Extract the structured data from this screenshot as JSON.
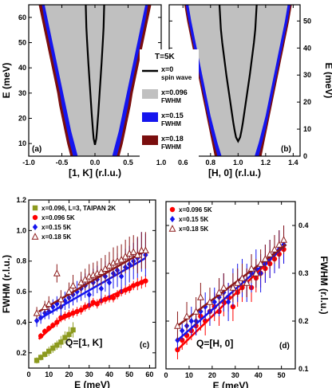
{
  "colors": {
    "gray": "#c0c0c0",
    "blue": "#1515ee",
    "darkred": "#7a0e0e",
    "black": "#000000",
    "red": "#ff0000",
    "olive": "#8c9a1e",
    "brown": "#8b1a1a"
  },
  "chart_data": [
    {
      "id": "a",
      "type": "area",
      "panel_label": "(a)",
      "xlabel": "[1, K] (r.l.u.)",
      "ylabel": "E (meV)",
      "xlim": [
        -1.0,
        1.0
      ],
      "ylim": [
        5,
        65
      ],
      "xticks": [
        -1.0,
        -0.5,
        0.0,
        0.5,
        1.0
      ],
      "xtick_labels": [
        "-1.0",
        "-0.5",
        "0.0",
        "0.5",
        "1.0"
      ],
      "yticks": [
        10,
        20,
        30,
        40,
        50,
        60
      ],
      "yaxis_side": "left",
      "center": 0.0,
      "energies": [
        5,
        10,
        15,
        20,
        25,
        30,
        35,
        40,
        45,
        50,
        55,
        60,
        65
      ],
      "bands": [
        {
          "name": "x=0.18 FWHM",
          "color": "darkred",
          "half_width": [
            0.37,
            0.42,
            0.46,
            0.5,
            0.54,
            0.57,
            0.61,
            0.65,
            0.69,
            0.73,
            0.77,
            0.81,
            0.85
          ]
        },
        {
          "name": "x=0.15 FWHM",
          "color": "blue",
          "half_width": [
            0.33,
            0.38,
            0.42,
            0.46,
            0.5,
            0.53,
            0.57,
            0.61,
            0.65,
            0.69,
            0.73,
            0.77,
            0.8
          ]
        },
        {
          "name": "x=0.096 FWHM",
          "color": "gray",
          "half_width": [
            0.26,
            0.31,
            0.36,
            0.4,
            0.44,
            0.48,
            0.52,
            0.56,
            0.6,
            0.64,
            0.68,
            0.72,
            0.76
          ]
        }
      ],
      "spin_wave": {
        "name": "x=0 spin wave",
        "gap": 9.5,
        "k": [
          0.0,
          0.02,
          0.03,
          0.04,
          0.05,
          0.06,
          0.07,
          0.08,
          0.09,
          0.1,
          0.11,
          0.12,
          0.13,
          0.14
        ],
        "E": [
          9.5,
          12,
          15,
          18.5,
          22,
          26,
          30,
          34,
          38,
          42,
          46.5,
          51,
          56,
          66
        ]
      }
    },
    {
      "id": "b",
      "type": "area",
      "panel_label": "(b)",
      "xlabel": "[H, 0] (r.l.u.)",
      "ylabel": "E (meV)",
      "xlim": [
        0.5,
        1.45
      ],
      "ylim": [
        0,
        56
      ],
      "xticks": [
        0.6,
        0.8,
        1.0,
        1.2,
        1.4
      ],
      "xtick_labels": [
        "0.6",
        "0.8",
        "1.0",
        "1.2",
        "1.4"
      ],
      "yticks": [
        0,
        10,
        20,
        30,
        40,
        50
      ],
      "yaxis_side": "right",
      "center": 1.0,
      "energies": [
        0,
        5,
        10,
        15,
        20,
        25,
        30,
        35,
        40,
        45,
        50,
        56
      ],
      "bands": [
        {
          "name": "x=0.18 FWHM",
          "color": "darkred",
          "half_width": [
            0.17,
            0.19,
            0.21,
            0.23,
            0.25,
            0.27,
            0.29,
            0.31,
            0.33,
            0.35,
            0.37,
            0.39
          ]
        },
        {
          "name": "x=0.15 FWHM",
          "color": "blue",
          "half_width": [
            0.15,
            0.175,
            0.2,
            0.22,
            0.24,
            0.26,
            0.28,
            0.3,
            0.32,
            0.34,
            0.36,
            0.38
          ]
        },
        {
          "name": "x=0.096 FWHM",
          "color": "gray",
          "half_width": [
            0.12,
            0.15,
            0.175,
            0.2,
            0.22,
            0.24,
            0.26,
            0.28,
            0.3,
            0.32,
            0.34,
            0.36
          ]
        }
      ],
      "spin_wave": {
        "name": "x=0 spin wave",
        "gap": 5.5,
        "k": [
          0.0,
          0.015,
          0.025,
          0.035,
          0.045,
          0.055,
          0.065,
          0.075,
          0.085,
          0.095,
          0.105,
          0.115,
          0.125,
          0.135
        ],
        "E": [
          5.5,
          7,
          9.5,
          12.5,
          16,
          19.5,
          23,
          26.5,
          30,
          34,
          38,
          42,
          47,
          56
        ]
      }
    },
    {
      "id": "c",
      "type": "scatter",
      "panel_label": "(c)",
      "q_label": "Q=[1, K]",
      "xlabel": "E (meV)",
      "ylabel": "FWHM (r.l.u.)",
      "xlim": [
        0,
        63
      ],
      "ylim": [
        0.1,
        1.2
      ],
      "xticks": [
        0,
        10,
        20,
        30,
        40,
        50,
        60
      ],
      "yticks": [
        0.2,
        0.4,
        0.6,
        0.8,
        1.0,
        1.2
      ],
      "ytick_labels": [
        "0.2",
        "0.4",
        "0.6",
        "0.8",
        "1.0",
        "1.2"
      ],
      "yaxis_side": "left",
      "series": [
        {
          "name": "x=0.096, L=3, TAIPAN  2K",
          "color": "olive",
          "marker": "square",
          "x": [
            4,
            6,
            8,
            10,
            12,
            14,
            16,
            18,
            20,
            22
          ],
          "y": [
            0.15,
            0.17,
            0.19,
            0.21,
            0.23,
            0.25,
            0.27,
            0.3,
            0.32,
            0.35
          ],
          "err": [
            0.02,
            0.02,
            0.02,
            0.03,
            0.03,
            0.03,
            0.04,
            0.04,
            0.05,
            0.05
          ],
          "fit": [
            [
              4,
              0.15
            ],
            [
              23,
              0.35
            ]
          ]
        },
        {
          "name": "x=0.096      5K",
          "color": "red",
          "marker": "circle",
          "x": [
            6,
            8,
            10,
            12,
            14,
            16,
            18,
            20,
            22,
            24,
            26,
            28,
            30,
            32,
            34,
            36,
            38,
            40,
            42,
            44,
            46,
            48,
            50,
            52,
            54,
            56,
            58
          ],
          "y": [
            0.31,
            0.34,
            0.36,
            0.38,
            0.4,
            0.43,
            0.44,
            0.45,
            0.46,
            0.47,
            0.48,
            0.5,
            0.51,
            0.53,
            0.52,
            0.54,
            0.55,
            0.56,
            0.56,
            0.58,
            0.6,
            0.61,
            0.62,
            0.64,
            0.65,
            0.66,
            0.67
          ],
          "err": [
            0.02,
            0.02,
            0.02,
            0.02,
            0.03,
            0.03,
            0.03,
            0.03,
            0.03,
            0.03,
            0.03,
            0.03,
            0.03,
            0.03,
            0.03,
            0.03,
            0.03,
            0.03,
            0.03,
            0.03,
            0.03,
            0.03,
            0.03,
            0.03,
            0.04,
            0.04,
            0.04
          ],
          "fit": [
            [
              5,
              0.29
            ],
            [
              15,
              0.41
            ],
            [
              58,
              0.68
            ]
          ]
        },
        {
          "name": "x=0.15        5K",
          "color": "blue",
          "marker": "diamond",
          "x": [
            4,
            6,
            8,
            10,
            12,
            14,
            16,
            18,
            20,
            22,
            24,
            26,
            28,
            30,
            32,
            34,
            36,
            38,
            40,
            42,
            44,
            46,
            48,
            50,
            52,
            54,
            56,
            58
          ],
          "y": [
            0.41,
            0.43,
            0.46,
            0.47,
            0.5,
            0.52,
            0.5,
            0.54,
            0.56,
            0.58,
            0.6,
            0.62,
            0.64,
            0.58,
            0.66,
            0.68,
            0.62,
            0.7,
            0.66,
            0.72,
            0.74,
            0.7,
            0.76,
            0.78,
            0.8,
            0.82,
            0.86,
            0.84
          ],
          "err": [
            0.04,
            0.04,
            0.04,
            0.05,
            0.05,
            0.05,
            0.06,
            0.06,
            0.07,
            0.07,
            0.07,
            0.08,
            0.08,
            0.08,
            0.09,
            0.09,
            0.09,
            0.1,
            0.1,
            0.1,
            0.11,
            0.11,
            0.12,
            0.12,
            0.12,
            0.13,
            0.13,
            0.14
          ],
          "fit": [
            [
              5,
              0.42
            ],
            [
              58,
              0.82
            ]
          ]
        },
        {
          "name": "x=0.18        5K",
          "color": "brown",
          "marker": "triangle",
          "x": [
            4,
            8,
            10,
            14,
            16,
            20,
            22,
            26,
            28,
            30,
            32,
            34,
            36,
            38,
            40,
            42,
            44,
            46,
            48,
            50,
            52,
            54,
            56,
            58
          ],
          "y": [
            0.46,
            0.5,
            0.52,
            0.72,
            0.55,
            0.6,
            0.64,
            0.66,
            0.68,
            0.7,
            0.71,
            0.72,
            0.73,
            0.75,
            0.77,
            0.79,
            0.8,
            0.81,
            0.83,
            0.85,
            0.86,
            0.84,
            0.87,
            0.87
          ],
          "err": [
            0.04,
            0.04,
            0.05,
            0.06,
            0.06,
            0.06,
            0.07,
            0.07,
            0.07,
            0.08,
            0.08,
            0.08,
            0.09,
            0.09,
            0.09,
            0.1,
            0.1,
            0.1,
            0.11,
            0.11,
            0.11,
            0.12,
            0.12,
            0.12
          ],
          "fit": [
            [
              5,
              0.47
            ],
            [
              58,
              0.87
            ]
          ]
        }
      ]
    },
    {
      "id": "d",
      "type": "scatter",
      "panel_label": "(d)",
      "q_label": "Q=[H, 0]",
      "xlabel": "E (meV)",
      "ylabel": "FWHM (r.l.u.)",
      "xlim": [
        0,
        56
      ],
      "ylim": [
        0.1,
        0.45
      ],
      "xticks": [
        0,
        10,
        20,
        30,
        40,
        50
      ],
      "yticks": [
        0.1,
        0.2,
        0.3,
        0.4
      ],
      "ytick_labels": [
        "0.1",
        "0.2",
        "0.3",
        "0.4"
      ],
      "yaxis_side": "right",
      "series": [
        {
          "name": "x=0.096  5K",
          "color": "red",
          "marker": "circle",
          "x": [
            5,
            7,
            9,
            11,
            13,
            15,
            17,
            19,
            21,
            23,
            25,
            27,
            29,
            31,
            33,
            35,
            37,
            39,
            41,
            43,
            45,
            47,
            49,
            51
          ],
          "y": [
            0.14,
            0.16,
            0.17,
            0.18,
            0.19,
            0.21,
            0.2,
            0.22,
            0.23,
            0.22,
            0.24,
            0.25,
            0.23,
            0.26,
            0.27,
            0.28,
            0.27,
            0.29,
            0.3,
            0.31,
            0.32,
            0.33,
            0.34,
            0.35
          ],
          "err": [
            0.02,
            0.02,
            0.02,
            0.02,
            0.02,
            0.03,
            0.03,
            0.03,
            0.03,
            0.03,
            0.03,
            0.03,
            0.03,
            0.03,
            0.03,
            0.03,
            0.03,
            0.03,
            0.03,
            0.03,
            0.03,
            0.03,
            0.03,
            0.03
          ],
          "fit": [
            [
              5,
              0.14
            ],
            [
              52,
              0.36
            ]
          ]
        },
        {
          "name": "x=0.15    5K",
          "color": "blue",
          "marker": "diamond",
          "x": [
            5,
            7,
            9,
            11,
            13,
            15,
            17,
            19,
            21,
            23,
            25,
            27,
            29,
            31,
            33,
            35,
            37,
            39,
            41,
            43,
            45,
            47,
            49,
            51
          ],
          "y": [
            0.16,
            0.18,
            0.19,
            0.2,
            0.2,
            0.22,
            0.23,
            0.22,
            0.24,
            0.25,
            0.26,
            0.24,
            0.27,
            0.28,
            0.29,
            0.28,
            0.3,
            0.31,
            0.3,
            0.32,
            0.33,
            0.34,
            0.35,
            0.36
          ],
          "err": [
            0.02,
            0.02,
            0.02,
            0.03,
            0.03,
            0.03,
            0.03,
            0.03,
            0.03,
            0.04,
            0.04,
            0.04,
            0.04,
            0.04,
            0.04,
            0.04,
            0.04,
            0.04,
            0.04,
            0.04,
            0.04,
            0.04,
            0.04,
            0.04
          ],
          "fit": [
            [
              5,
              0.16
            ],
            [
              52,
              0.36
            ]
          ]
        },
        {
          "name": "x=0.18    5K",
          "color": "brown",
          "marker": "triangle",
          "x": [
            5,
            9,
            13,
            15,
            19,
            23,
            25,
            29,
            31,
            33,
            35,
            37,
            39,
            41,
            43,
            45,
            47,
            49,
            51
          ],
          "y": [
            0.19,
            0.21,
            0.22,
            0.25,
            0.24,
            0.26,
            0.27,
            0.27,
            0.28,
            0.29,
            0.28,
            0.31,
            0.3,
            0.32,
            0.33,
            0.34,
            0.35,
            0.36,
            0.37
          ],
          "err": [
            0.03,
            0.03,
            0.03,
            0.03,
            0.03,
            0.03,
            0.03,
            0.03,
            0.03,
            0.03,
            0.03,
            0.03,
            0.03,
            0.03,
            0.03,
            0.03,
            0.03,
            0.03,
            0.03
          ],
          "fit": [
            [
              5,
              0.19
            ],
            [
              52,
              0.36
            ]
          ]
        }
      ]
    }
  ],
  "shared_legend": {
    "title": "T=5K",
    "items": [
      {
        "label": "x=0",
        "sublabel": "spin wave",
        "color": "black",
        "kind": "line"
      },
      {
        "label": "x=0.096",
        "sublabel": "FWHM",
        "color": "gray",
        "kind": "box"
      },
      {
        "label": "x=0.15",
        "sublabel": "FWHM",
        "color": "blue",
        "kind": "box"
      },
      {
        "label": "x=0.18",
        "sublabel": "FWHM",
        "color": "darkred",
        "kind": "box"
      }
    ]
  }
}
